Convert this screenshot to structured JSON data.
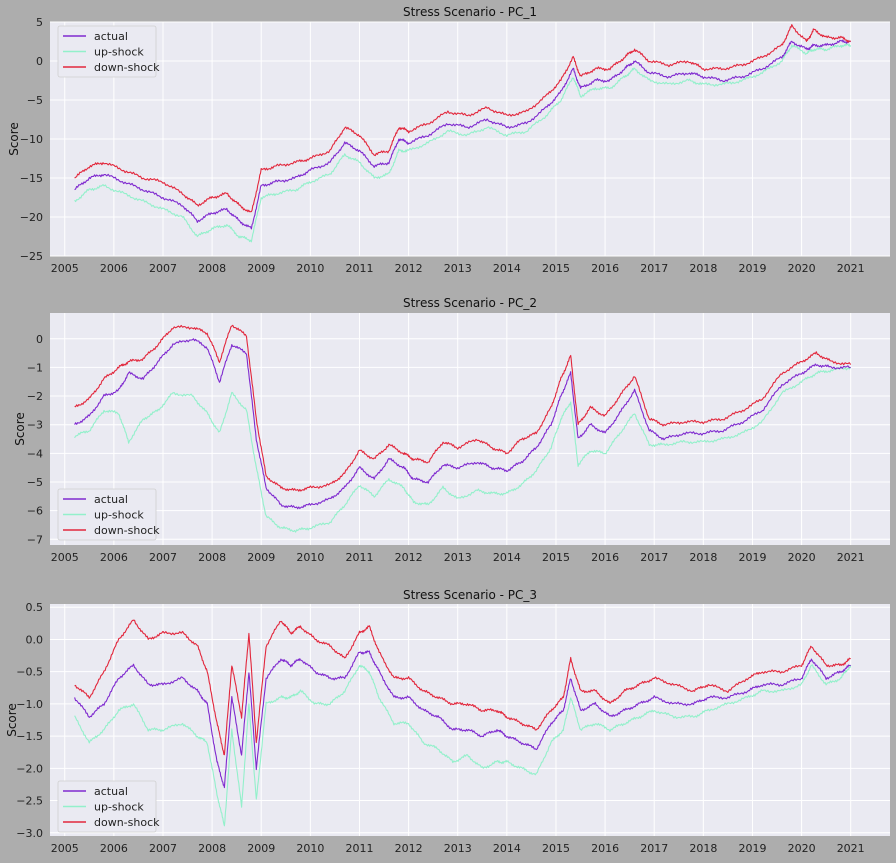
{
  "chart_data": [
    {
      "type": "line",
      "title": "Stress Scenario - PC_1",
      "ylabel": "Score",
      "xlabel": "",
      "ylim": [
        -25,
        5
      ],
      "yticks": [
        -25,
        -20,
        -15,
        -10,
        -5,
        0,
        5
      ],
      "xlim": [
        2004.7,
        2021.8
      ],
      "xticks": [
        2005,
        2006,
        2007,
        2008,
        2009,
        2010,
        2011,
        2012,
        2013,
        2014,
        2015,
        2016,
        2017,
        2018,
        2019,
        2020,
        2021
      ],
      "grid": true,
      "legend_position": "upper-left",
      "x": [
        2005.2,
        2005.5,
        2005.8,
        2006.2,
        2006.6,
        2007.0,
        2007.4,
        2007.7,
        2008.0,
        2008.3,
        2008.55,
        2008.8,
        2009.0,
        2009.3,
        2009.7,
        2010.0,
        2010.4,
        2010.7,
        2011.0,
        2011.3,
        2011.6,
        2011.8,
        2012.0,
        2012.4,
        2012.8,
        2013.2,
        2013.6,
        2014.0,
        2014.4,
        2014.8,
        2015.1,
        2015.35,
        2015.5,
        2015.8,
        2016.1,
        2016.4,
        2016.6,
        2016.9,
        2017.3,
        2017.7,
        2018.0,
        2018.4,
        2018.8,
        2019.2,
        2019.6,
        2019.8,
        2020.1,
        2020.25,
        2020.5,
        2020.8,
        2021.0
      ],
      "series": [
        {
          "name": "actual",
          "color": "#7f2acf",
          "values": [
            -16.5,
            -15.0,
            -14.5,
            -15.5,
            -16.5,
            -17.5,
            -18.5,
            -20.5,
            -19.5,
            -19.0,
            -20.5,
            -21.5,
            -16.0,
            -15.5,
            -15.0,
            -14.0,
            -13.0,
            -10.5,
            -11.5,
            -13.5,
            -13.0,
            -10.0,
            -10.5,
            -9.5,
            -8.0,
            -8.5,
            -7.5,
            -8.5,
            -8.0,
            -6.0,
            -4.0,
            -1.0,
            -3.5,
            -2.5,
            -2.5,
            -1.0,
            0.0,
            -1.5,
            -2.0,
            -1.5,
            -2.0,
            -2.5,
            -2.0,
            -1.0,
            0.5,
            2.5,
            1.5,
            2.0,
            2.0,
            2.5,
            2.5
          ]
        },
        {
          "name": "up-shock",
          "color": "#93f0cb",
          "values": [
            -18.0,
            -16.5,
            -16.0,
            -17.0,
            -18.0,
            -19.0,
            -20.0,
            -22.5,
            -21.5,
            -21.0,
            -22.5,
            -23.0,
            -17.5,
            -17.0,
            -16.5,
            -15.5,
            -14.5,
            -12.0,
            -13.0,
            -15.0,
            -14.5,
            -11.5,
            -11.5,
            -10.5,
            -9.0,
            -9.5,
            -8.5,
            -9.5,
            -9.0,
            -7.0,
            -5.0,
            -2.0,
            -4.5,
            -3.5,
            -3.5,
            -2.0,
            -1.0,
            -2.5,
            -3.0,
            -2.5,
            -3.0,
            -3.0,
            -2.5,
            -1.5,
            0.0,
            2.0,
            1.0,
            1.5,
            1.5,
            2.0,
            2.0
          ]
        },
        {
          "name": "down-shock",
          "color": "#e2273c",
          "values": [
            -15.0,
            -13.5,
            -13.0,
            -14.0,
            -15.0,
            -15.5,
            -17.0,
            -18.5,
            -17.5,
            -17.0,
            -18.5,
            -19.5,
            -14.0,
            -13.5,
            -13.0,
            -12.5,
            -11.5,
            -8.5,
            -9.5,
            -12.0,
            -11.5,
            -8.5,
            -9.0,
            -8.0,
            -6.5,
            -7.0,
            -6.0,
            -7.0,
            -6.5,
            -4.5,
            -2.5,
            0.5,
            -2.0,
            -1.0,
            -1.0,
            0.5,
            1.5,
            0.0,
            -0.5,
            0.0,
            -1.0,
            -1.0,
            -0.5,
            0.5,
            2.0,
            4.5,
            2.5,
            4.0,
            3.0,
            3.0,
            2.5
          ]
        }
      ]
    },
    {
      "type": "line",
      "title": "Stress Scenario - PC_2",
      "ylabel": "Score",
      "xlabel": "",
      "ylim": [
        -7.2,
        0.9
      ],
      "yticks": [
        -7,
        -6,
        -5,
        -4,
        -3,
        -2,
        -1,
        0
      ],
      "xlim": [
        2004.7,
        2021.8
      ],
      "xticks": [
        2005,
        2006,
        2007,
        2008,
        2009,
        2010,
        2011,
        2012,
        2013,
        2014,
        2015,
        2016,
        2017,
        2018,
        2019,
        2020,
        2021
      ],
      "grid": true,
      "legend_position": "lower-left",
      "x": [
        2005.2,
        2005.5,
        2005.8,
        2006.1,
        2006.3,
        2006.6,
        2006.9,
        2007.2,
        2007.6,
        2007.9,
        2008.15,
        2008.4,
        2008.7,
        2008.9,
        2009.1,
        2009.4,
        2009.7,
        2010.0,
        2010.4,
        2010.7,
        2011.0,
        2011.3,
        2011.6,
        2011.9,
        2012.1,
        2012.4,
        2012.7,
        2013.0,
        2013.4,
        2013.7,
        2014.0,
        2014.3,
        2014.6,
        2014.9,
        2015.1,
        2015.3,
        2015.45,
        2015.7,
        2016.0,
        2016.3,
        2016.6,
        2016.9,
        2017.2,
        2017.6,
        2018.0,
        2018.4,
        2018.8,
        2019.2,
        2019.6,
        2020.0,
        2020.3,
        2020.6,
        2021.0
      ],
      "series": [
        {
          "name": "actual",
          "color": "#7f2acf",
          "values": [
            -3.0,
            -2.7,
            -2.0,
            -1.8,
            -1.2,
            -1.4,
            -0.8,
            -0.2,
            0.0,
            -0.3,
            -1.5,
            -0.2,
            -0.5,
            -3.5,
            -5.2,
            -5.8,
            -5.9,
            -5.8,
            -5.6,
            -5.2,
            -4.5,
            -4.9,
            -4.2,
            -4.5,
            -4.9,
            -5.0,
            -4.4,
            -4.5,
            -4.3,
            -4.5,
            -4.6,
            -4.3,
            -3.8,
            -3.0,
            -2.0,
            -1.2,
            -3.5,
            -3.0,
            -3.3,
            -2.6,
            -1.8,
            -3.2,
            -3.5,
            -3.3,
            -3.3,
            -3.2,
            -2.9,
            -2.5,
            -1.6,
            -1.2,
            -0.9,
            -1.0,
            -1.0
          ]
        },
        {
          "name": "up-shock",
          "color": "#93f0cb",
          "values": [
            -3.4,
            -3.2,
            -2.5,
            -2.6,
            -3.6,
            -2.8,
            -2.5,
            -1.9,
            -2.0,
            -2.6,
            -3.3,
            -1.9,
            -2.5,
            -4.5,
            -6.2,
            -6.6,
            -6.7,
            -6.6,
            -6.4,
            -5.8,
            -5.1,
            -5.5,
            -4.9,
            -5.2,
            -5.7,
            -5.8,
            -5.2,
            -5.6,
            -5.3,
            -5.4,
            -5.4,
            -5.1,
            -4.6,
            -3.8,
            -2.8,
            -2.2,
            -4.4,
            -3.9,
            -4.0,
            -3.3,
            -2.6,
            -3.7,
            -3.7,
            -3.6,
            -3.6,
            -3.5,
            -3.3,
            -2.9,
            -1.9,
            -1.5,
            -1.2,
            -1.1,
            -1.0
          ]
        },
        {
          "name": "down-shock",
          "color": "#e2273c",
          "values": [
            -2.4,
            -2.1,
            -1.4,
            -1.0,
            -0.8,
            -0.7,
            -0.2,
            0.4,
            0.4,
            0.2,
            -0.8,
            0.5,
            0.1,
            -2.8,
            -4.8,
            -5.2,
            -5.3,
            -5.2,
            -5.1,
            -4.7,
            -3.9,
            -4.2,
            -3.7,
            -4.0,
            -4.2,
            -4.3,
            -3.6,
            -3.8,
            -3.5,
            -3.8,
            -4.0,
            -3.5,
            -3.3,
            -2.4,
            -1.4,
            -0.6,
            -3.0,
            -2.4,
            -2.7,
            -2.0,
            -1.3,
            -2.8,
            -3.0,
            -2.9,
            -2.9,
            -2.8,
            -2.5,
            -2.1,
            -1.2,
            -0.8,
            -0.5,
            -0.8,
            -0.9
          ]
        }
      ]
    },
    {
      "type": "line",
      "title": "Stress Scenario - PC_3",
      "ylabel": "Score",
      "xlabel": "",
      "ylim": [
        -3.05,
        0.55
      ],
      "yticks": [
        -3.0,
        -2.5,
        -2.0,
        -1.5,
        -1.0,
        -0.5,
        0.0,
        0.5
      ],
      "xlim": [
        2004.7,
        2021.8
      ],
      "xticks": [
        2005,
        2006,
        2007,
        2008,
        2009,
        2010,
        2011,
        2012,
        2013,
        2014,
        2015,
        2016,
        2017,
        2018,
        2019,
        2020,
        2021
      ],
      "grid": true,
      "legend_position": "lower-left",
      "x": [
        2005.2,
        2005.5,
        2005.8,
        2006.1,
        2006.4,
        2006.7,
        2007.0,
        2007.4,
        2007.7,
        2007.9,
        2008.1,
        2008.25,
        2008.4,
        2008.6,
        2008.75,
        2008.9,
        2009.1,
        2009.4,
        2009.6,
        2009.8,
        2010.1,
        2010.4,
        2010.7,
        2011.0,
        2011.2,
        2011.4,
        2011.7,
        2012.0,
        2012.3,
        2012.6,
        2012.9,
        2013.2,
        2013.5,
        2013.8,
        2014.0,
        2014.3,
        2014.6,
        2014.9,
        2015.15,
        2015.3,
        2015.5,
        2015.8,
        2016.1,
        2016.4,
        2016.7,
        2017.0,
        2017.4,
        2017.8,
        2018.1,
        2018.5,
        2018.9,
        2019.2,
        2019.6,
        2020.0,
        2020.2,
        2020.5,
        2020.8,
        2021.0
      ],
      "series": [
        {
          "name": "actual",
          "color": "#7f2acf",
          "values": [
            -0.9,
            -1.2,
            -1.0,
            -0.6,
            -0.4,
            -0.7,
            -0.7,
            -0.6,
            -0.8,
            -1.0,
            -1.9,
            -2.3,
            -0.9,
            -1.8,
            -0.5,
            -2.0,
            -0.6,
            -0.3,
            -0.4,
            -0.3,
            -0.5,
            -0.6,
            -0.6,
            -0.2,
            -0.2,
            -0.5,
            -0.9,
            -0.9,
            -1.1,
            -1.2,
            -1.4,
            -1.4,
            -1.5,
            -1.4,
            -1.5,
            -1.6,
            -1.7,
            -1.3,
            -1.1,
            -0.6,
            -1.1,
            -1.0,
            -1.2,
            -1.1,
            -1.0,
            -0.9,
            -1.0,
            -1.0,
            -0.9,
            -0.9,
            -0.8,
            -0.7,
            -0.7,
            -0.6,
            -0.3,
            -0.6,
            -0.5,
            -0.4
          ]
        },
        {
          "name": "up-shock",
          "color": "#93f0cb",
          "values": [
            -1.2,
            -1.6,
            -1.4,
            -1.1,
            -1.0,
            -1.4,
            -1.4,
            -1.3,
            -1.5,
            -1.6,
            -2.4,
            -2.9,
            -1.4,
            -2.6,
            -1.0,
            -2.5,
            -1.0,
            -0.9,
            -0.9,
            -0.8,
            -1.0,
            -1.0,
            -0.8,
            -0.4,
            -0.5,
            -0.9,
            -1.3,
            -1.3,
            -1.6,
            -1.7,
            -1.9,
            -1.8,
            -2.0,
            -1.9,
            -1.9,
            -2.0,
            -2.1,
            -1.6,
            -1.4,
            -0.9,
            -1.4,
            -1.3,
            -1.4,
            -1.3,
            -1.2,
            -1.1,
            -1.2,
            -1.2,
            -1.1,
            -1.0,
            -0.9,
            -0.8,
            -0.8,
            -0.7,
            -0.4,
            -0.7,
            -0.6,
            -0.4
          ]
        },
        {
          "name": "down-shock",
          "color": "#e2273c",
          "values": [
            -0.7,
            -0.9,
            -0.5,
            0.0,
            0.3,
            0.0,
            0.1,
            0.1,
            -0.1,
            -0.5,
            -1.3,
            -1.8,
            -0.4,
            -1.2,
            0.1,
            -1.6,
            -0.1,
            0.3,
            0.1,
            0.2,
            0.0,
            -0.1,
            -0.3,
            0.1,
            0.2,
            -0.2,
            -0.6,
            -0.6,
            -0.8,
            -0.9,
            -1.0,
            -1.0,
            -1.1,
            -1.1,
            -1.2,
            -1.3,
            -1.4,
            -1.1,
            -0.9,
            -0.3,
            -0.8,
            -0.8,
            -1.0,
            -0.8,
            -0.7,
            -0.6,
            -0.7,
            -0.8,
            -0.7,
            -0.8,
            -0.6,
            -0.5,
            -0.5,
            -0.4,
            -0.1,
            -0.4,
            -0.4,
            -0.3
          ]
        }
      ]
    }
  ]
}
